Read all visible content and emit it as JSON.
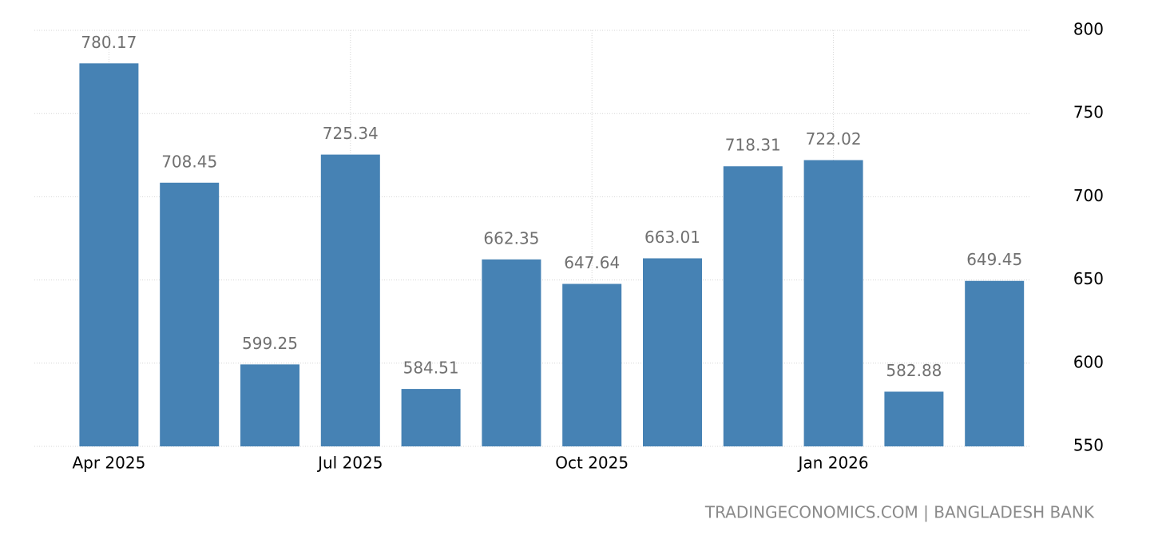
{
  "chart_data": {
    "type": "bar",
    "categories": [
      "Apr 2025",
      null,
      null,
      "Jul 2025",
      null,
      null,
      "Oct 2025",
      null,
      null,
      "Jan 2026",
      null,
      null
    ],
    "values": [
      780.17,
      708.45,
      599.25,
      725.34,
      584.51,
      662.35,
      647.64,
      663.01,
      718.31,
      722.02,
      582.88,
      649.45
    ],
    "color": "#4682b4",
    "ylim": [
      550,
      800
    ],
    "yticks": [
      550,
      600,
      650,
      700,
      750,
      800
    ],
    "grid": true,
    "source": "TRADINGECONOMICS.COM | BANGLADESH BANK"
  }
}
